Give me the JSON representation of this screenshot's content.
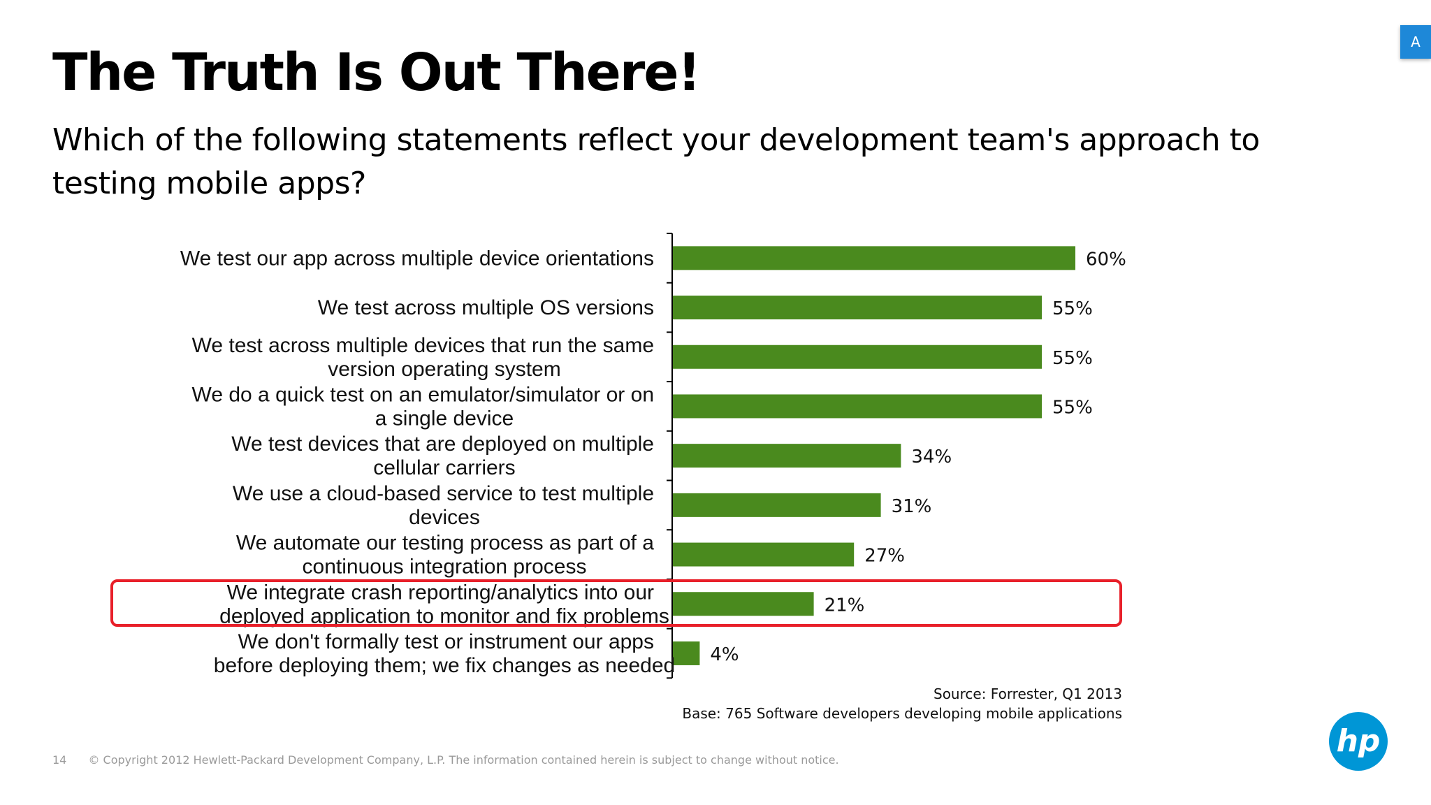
{
  "slide": {
    "title": "The Truth Is Out There!",
    "subtitle": "Which of the following statements reflect your development team's approach to testing mobile apps?",
    "source_line1": "Source: Forrester, Q1 2013",
    "source_line2": "Base: 765 Software developers developing mobile applications",
    "page_number": "14",
    "copyright": "© Copyright 2012 Hewlett-Packard Development Company, L.P.  The information contained herein is subject to change without notice.",
    "corner_badge": "A",
    "logo_text": "hp",
    "bar_color": "#4a8a1e",
    "highlight_color": "#e8202a",
    "logo_color": "#0096d6"
  },
  "chart_data": {
    "type": "bar",
    "orientation": "horizontal",
    "categories": [
      [
        "We test our app across multiple device orientations"
      ],
      [
        "We test across multiple OS versions"
      ],
      [
        "We test across multiple devices that run the same",
        "version operating system"
      ],
      [
        "We do a quick test on an emulator/simulator or on",
        "a single device"
      ],
      [
        "We test devices that are deployed on multiple",
        "cellular carriers"
      ],
      [
        "We use a cloud-based service to test multiple",
        "devices"
      ],
      [
        "We automate our testing process as part of a",
        "continuous integration process"
      ],
      [
        "We integrate crash reporting/analytics into our",
        "deployed application to monitor and fix problems"
      ],
      [
        "We don't formally test or instrument our apps",
        "before deploying them; we fix changes as needed"
      ]
    ],
    "values": [
      60,
      55,
      55,
      55,
      34,
      31,
      27,
      21,
      4
    ],
    "value_labels": [
      "60%",
      "55%",
      "55%",
      "55%",
      "34%",
      "31%",
      "27%",
      "21%",
      "4%"
    ],
    "highlighted_index": 7,
    "unit": "%",
    "xlim": [
      0,
      100
    ]
  }
}
